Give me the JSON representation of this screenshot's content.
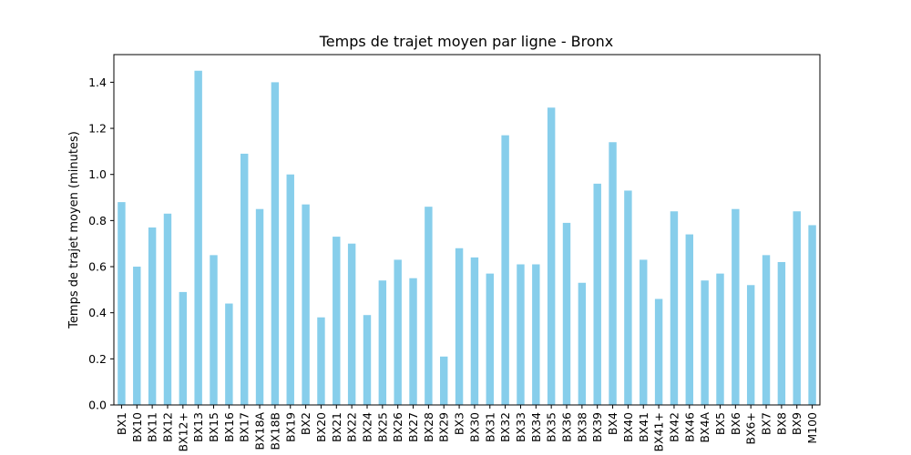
{
  "chart_data": {
    "type": "bar",
    "title": "Temps de trajet moyen par ligne - Bronx",
    "xlabel": "",
    "ylabel": "Temps de trajet moyen (minutes)",
    "ylim": [
      0,
      1.52
    ],
    "yticks": [
      "0.0",
      "0.2",
      "0.4",
      "0.6",
      "0.8",
      "1.0",
      "1.2",
      "1.4"
    ],
    "grid": false,
    "bar_color": "#87ceeb",
    "categories": [
      "BX1",
      "BX10",
      "BX11",
      "BX12",
      "BX12+",
      "BX13",
      "BX15",
      "BX16",
      "BX17",
      "BX18A",
      "BX18B",
      "BX19",
      "BX2",
      "BX20",
      "BX21",
      "BX22",
      "BX24",
      "BX25",
      "BX26",
      "BX27",
      "BX28",
      "BX29",
      "BX3",
      "BX30",
      "BX31",
      "BX32",
      "BX33",
      "BX34",
      "BX35",
      "BX36",
      "BX38",
      "BX39",
      "BX4",
      "BX40",
      "BX41",
      "BX41+",
      "BX42",
      "BX46",
      "BX4A",
      "BX5",
      "BX6",
      "BX6+",
      "BX7",
      "BX8",
      "BX9",
      "M100"
    ],
    "values": [
      0.88,
      0.6,
      0.77,
      0.83,
      0.49,
      1.45,
      0.65,
      0.44,
      1.09,
      0.85,
      1.4,
      1.0,
      0.87,
      0.38,
      0.73,
      0.7,
      0.39,
      0.54,
      0.63,
      0.55,
      0.86,
      0.21,
      0.68,
      0.64,
      0.57,
      1.17,
      0.61,
      0.61,
      1.29,
      0.79,
      0.53,
      0.96,
      1.14,
      0.93,
      0.63,
      0.46,
      0.84,
      0.74,
      0.54,
      0.57,
      0.85,
      0.52,
      0.65,
      0.62,
      0.84,
      0.78
    ]
  }
}
